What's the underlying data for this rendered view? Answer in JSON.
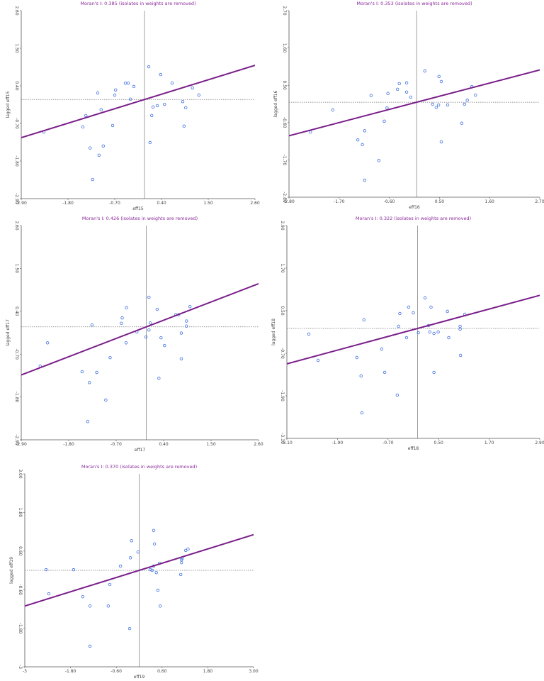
{
  "chart_data": [
    {
      "type": "scatter",
      "title": "Moran's I: 0.385 (isolates in weights are removed)",
      "x_label": "eff15",
      "y_label": "lagged eff15",
      "moran_i": 0.385,
      "color": "#3f6fe0",
      "line_color": "#7a1f8a",
      "xlim": [
        -2.9,
        2.6
      ],
      "ylim": [
        -2.9,
        2.6
      ],
      "xticks": [
        {
          "value": -2.9,
          "label": "-2.90"
        },
        {
          "value": -1.8,
          "label": "-1.80"
        },
        {
          "value": -0.7,
          "label": "-0.70"
        },
        {
          "value": 0.4,
          "label": "0.40"
        },
        {
          "value": 1.5,
          "label": "1.50"
        },
        {
          "value": 2.6,
          "label": "2.60"
        }
      ],
      "yticks": [
        {
          "value": -2.9,
          "label": "-2.90"
        },
        {
          "value": -1.8,
          "label": "-1.80"
        },
        {
          "value": -0.7,
          "label": "-0.70"
        },
        {
          "value": 0.4,
          "label": "0.40"
        },
        {
          "value": 1.5,
          "label": "1.50"
        },
        {
          "value": 2.6,
          "label": "2.60"
        }
      ],
      "x": [
        -2.37,
        -1.45,
        -1.38,
        -1.28,
        -1.22,
        -1.1,
        -1.07,
        -1.02,
        -0.97,
        -0.75,
        -0.7,
        -0.68,
        -0.45,
        -0.38,
        -0.33,
        -0.25,
        0.1,
        0.13,
        0.17,
        0.2,
        0.3,
        0.38,
        0.47,
        0.65,
        0.9,
        0.97,
        0.93,
        1.13,
        1.28
      ],
      "y": [
        -0.95,
        -0.8,
        -0.47,
        -1.42,
        -2.34,
        0.19,
        -1.63,
        -0.3,
        -1.36,
        -0.76,
        0.13,
        0.28,
        0.48,
        0.48,
        0.01,
        0.38,
        0.96,
        -1.26,
        -0.47,
        -0.22,
        -0.18,
        0.73,
        -0.14,
        0.48,
        -0.06,
        -0.24,
        -0.78,
        0.34,
        0.13
      ]
    },
    {
      "type": "scatter",
      "title": "Moran's I: 0.353 (isolates in weights are removed)",
      "x_label": "eff16",
      "y_label": "lagged eff16",
      "moran_i": 0.353,
      "color": "#3f6fe0",
      "line_color": "#7a1f8a",
      "xlim": [
        -2.8,
        2.7
      ],
      "ylim": [
        -2.8,
        2.7
      ],
      "xticks": [
        {
          "value": -2.8,
          "label": "-2.80"
        },
        {
          "value": -1.7,
          "label": "-1.70"
        },
        {
          "value": -0.6,
          "label": "-0.60"
        },
        {
          "value": 0.5,
          "label": "0.50"
        },
        {
          "value": 1.6,
          "label": "1.60"
        },
        {
          "value": 2.7,
          "label": "2.70"
        }
      ],
      "yticks": [
        {
          "value": -2.8,
          "label": "-2.80"
        },
        {
          "value": -1.7,
          "label": "-1.70"
        },
        {
          "value": -0.6,
          "label": "-0.60"
        },
        {
          "value": 0.5,
          "label": "0.50"
        },
        {
          "value": 1.6,
          "label": "1.60"
        },
        {
          "value": 2.7,
          "label": "2.70"
        }
      ],
      "x": [
        -2.33,
        -1.84,
        -1.29,
        -1.19,
        -1.14,
        -1.14,
        -1.0,
        -0.83,
        -0.71,
        -0.65,
        -0.63,
        -0.42,
        -0.38,
        -0.22,
        -0.22,
        -0.13,
        0.18,
        0.35,
        0.43,
        0.48,
        0.49,
        0.54,
        0.54,
        0.68,
        0.99,
        1.05,
        1.11,
        1.21,
        1.29
      ],
      "y": [
        -0.88,
        -0.23,
        -1.11,
        -1.25,
        -0.84,
        -2.3,
        0.2,
        -1.72,
        -0.56,
        -0.17,
        0.26,
        0.38,
        0.55,
        0.57,
        0.3,
        0.15,
        0.92,
        -0.06,
        -0.15,
        -0.08,
        0.76,
        0.61,
        -1.17,
        -0.08,
        -0.62,
        -0.06,
        0.06,
        0.46,
        0.21
      ]
    },
    {
      "type": "scatter",
      "title": "Moran's I: 0.426 (isolates in weights are removed)",
      "x_label": "eff17",
      "y_label": "lagged eff17",
      "moran_i": 0.426,
      "color": "#3f6fe0",
      "line_color": "#7a1f8a",
      "xlim": [
        -2.9,
        2.6
      ],
      "ylim": [
        -2.9,
        2.6
      ],
      "xticks": [
        {
          "value": -2.9,
          "label": "-2.90"
        },
        {
          "value": -1.8,
          "label": "-1.80"
        },
        {
          "value": -0.7,
          "label": "-0.70"
        },
        {
          "value": 0.4,
          "label": "0.40"
        },
        {
          "value": 1.5,
          "label": "1.50"
        },
        {
          "value": 2.6,
          "label": "2.60"
        }
      ],
      "yticks": [
        {
          "value": -2.9,
          "label": "-2.90"
        },
        {
          "value": -1.8,
          "label": "-1.80"
        },
        {
          "value": -0.7,
          "label": "-0.70"
        },
        {
          "value": 0.4,
          "label": "0.40"
        },
        {
          "value": 1.5,
          "label": "1.50"
        },
        {
          "value": 2.6,
          "label": "2.60"
        }
      ],
      "x": [
        -2.46,
        -2.29,
        -1.49,
        -1.32,
        -1.26,
        -1.15,
        -1.36,
        -0.94,
        -0.84,
        -0.58,
        -0.56,
        -0.46,
        -0.47,
        -0.22,
        0.06,
        0.06,
        0.09,
        -0.01,
        0.25,
        0.29,
        0.34,
        0.42,
        0.68,
        0.75,
        0.81,
        0.81,
        0.93,
        0.93,
        1.01
      ],
      "y": [
        -1.01,
        -0.41,
        -1.15,
        -1.43,
        0.05,
        -1.17,
        -2.43,
        -1.88,
        -0.79,
        0.09,
        0.23,
        0.49,
        -0.41,
        -0.13,
        0.76,
        -0.08,
        0.1,
        -0.26,
        0.45,
        -1.32,
        -0.28,
        -0.48,
        0.31,
        0.31,
        -0.16,
        -0.82,
        0.02,
        0.15,
        0.52
      ]
    },
    {
      "type": "scatter",
      "title": "Moran's I: 0.322 (isolates in weights are removed)",
      "x_label": "eff18",
      "y_label": "lagged eff18",
      "moran_i": 0.322,
      "color": "#3f6fe0",
      "line_color": "#7a1f8a",
      "xlim": [
        -3.1,
        2.9
      ],
      "ylim": [
        -3.1,
        2.9
      ],
      "xticks": [
        {
          "value": -3.1,
          "label": "-3.10"
        },
        {
          "value": -1.9,
          "label": "-1.90"
        },
        {
          "value": -0.7,
          "label": "-0.70"
        },
        {
          "value": 0.5,
          "label": "0.50"
        },
        {
          "value": 1.7,
          "label": "1.70"
        },
        {
          "value": 2.9,
          "label": "2.90"
        }
      ],
      "yticks": [
        {
          "value": -3.1,
          "label": "-3.10"
        },
        {
          "value": -1.9,
          "label": "-1.90"
        },
        {
          "value": -0.7,
          "label": "-0.70"
        },
        {
          "value": 0.5,
          "label": "0.50"
        },
        {
          "value": 1.7,
          "label": "1.70"
        },
        {
          "value": 2.9,
          "label": "2.90"
        }
      ],
      "x": [
        -2.58,
        -2.36,
        -1.44,
        -1.34,
        -1.27,
        -1.32,
        -0.85,
        -0.78,
        -0.48,
        -0.45,
        -0.42,
        -0.26,
        -0.21,
        -0.1,
        0.02,
        0.18,
        0.26,
        0.29,
        0.32,
        0.39,
        0.39,
        0.49,
        0.71,
        0.74,
        1.01,
        1.01,
        1.02,
        1.12
      ],
      "y": [
        -0.16,
        -0.9,
        -0.82,
        -1.34,
        0.24,
        -2.38,
        -0.58,
        -1.24,
        -1.88,
        0.06,
        0.42,
        -0.26,
        0.6,
        0.44,
        -0.12,
        0.86,
        0.08,
        -0.1,
        0.6,
        -1.24,
        -0.14,
        -0.1,
        0.48,
        -0.26,
        0.06,
        -0.02,
        -0.76,
        0.4
      ]
    },
    {
      "type": "scatter",
      "title": "Moran's I: 0.370 (isolates in weights are removed)",
      "x_label": "eff19",
      "y_label": "lagged eff19",
      "moran_i": 0.37,
      "color": "#3f6fe0",
      "line_color": "#7a1f8a",
      "xlim": [
        -3,
        3
      ],
      "ylim": [
        -3,
        3
      ],
      "xticks": [
        -3,
        {
          "value": -1.8,
          "label": "-1.80"
        },
        {
          "value": -0.6,
          "label": "-0.60"
        },
        {
          "value": 0.6,
          "label": "0.60"
        },
        {
          "value": 1.8,
          "label": "1.80"
        },
        {
          "value": 3,
          "label": "3.00"
        }
      ],
      "yticks": [
        -3,
        {
          "value": -1.8,
          "label": "-1.80"
        },
        {
          "value": -0.6,
          "label": "-0.60"
        },
        {
          "value": 0.6,
          "label": "0.60"
        },
        {
          "value": 1.8,
          "label": "1.80"
        },
        {
          "value": 3,
          "label": "3.00"
        }
      ],
      "x": [
        -2.44,
        -2.37,
        -1.72,
        -1.48,
        -1.29,
        -1.29,
        -0.81,
        -0.77,
        -0.49,
        -0.25,
        -0.23,
        -0.2,
        -0.03,
        0.29,
        0.34,
        0.38,
        0.4,
        0.38,
        0.45,
        0.49,
        0.53,
        0.55,
        1.09,
        1.11,
        1.11,
        1.13,
        1.22,
        1.28
      ],
      "y": [
        0.02,
        -0.73,
        0.02,
        -0.82,
        -1.11,
        -2.36,
        -1.11,
        -0.44,
        0.13,
        -1.81,
        0.39,
        0.92,
        0.57,
        0.02,
        0.0,
        1.24,
        0.82,
        0.13,
        -0.07,
        -0.62,
        0.22,
        -1.11,
        -0.13,
        0.24,
        0.33,
        0.38,
        0.62,
        0.66
      ]
    }
  ]
}
